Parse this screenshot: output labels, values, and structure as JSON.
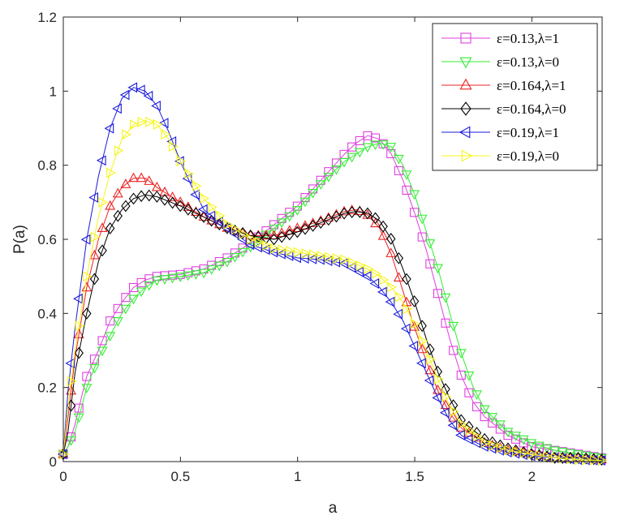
{
  "chart_data": {
    "type": "line",
    "xlabel": "a",
    "ylabel": "P(a)",
    "xlim": [
      0,
      2.3
    ],
    "ylim": [
      0,
      1.2
    ],
    "xticks": [
      0,
      0.5,
      1,
      1.5,
      2
    ],
    "yticks": [
      0,
      0.2,
      0.4,
      0.6,
      0.8,
      1,
      1.2
    ],
    "xtick_labels": [
      "0",
      "0.5",
      "1",
      "1.5",
      "2"
    ],
    "ytick_labels": [
      "0",
      "0.2",
      "0.4",
      "0.6",
      "0.8",
      "1",
      "1.2"
    ],
    "grid": false,
    "legend_position": "top-right",
    "marker_spacing": 0.0333,
    "series": [
      {
        "name": "ε=0.13,λ=1",
        "color": "#e040e0",
        "marker": "square",
        "points": [
          [
            0,
            0.02
          ],
          [
            0.02,
            0.04
          ],
          [
            0.05,
            0.1
          ],
          [
            0.08,
            0.18
          ],
          [
            0.1,
            0.23
          ],
          [
            0.15,
            0.3
          ],
          [
            0.2,
            0.38
          ],
          [
            0.25,
            0.43
          ],
          [
            0.3,
            0.47
          ],
          [
            0.35,
            0.49
          ],
          [
            0.4,
            0.5
          ],
          [
            0.5,
            0.505
          ],
          [
            0.6,
            0.52
          ],
          [
            0.7,
            0.55
          ],
          [
            0.8,
            0.59
          ],
          [
            0.9,
            0.64
          ],
          [
            1.0,
            0.69
          ],
          [
            1.1,
            0.76
          ],
          [
            1.2,
            0.83
          ],
          [
            1.25,
            0.86
          ],
          [
            1.3,
            0.88
          ],
          [
            1.35,
            0.87
          ],
          [
            1.4,
            0.83
          ],
          [
            1.45,
            0.76
          ],
          [
            1.5,
            0.67
          ],
          [
            1.55,
            0.57
          ],
          [
            1.6,
            0.45
          ],
          [
            1.65,
            0.33
          ],
          [
            1.7,
            0.23
          ],
          [
            1.75,
            0.16
          ],
          [
            1.8,
            0.12
          ],
          [
            1.9,
            0.07
          ],
          [
            2.0,
            0.04
          ],
          [
            2.1,
            0.03
          ],
          [
            2.2,
            0.02
          ],
          [
            2.3,
            0.01
          ]
        ]
      },
      {
        "name": "ε=0.13,λ=0",
        "color": "#33ee33",
        "marker": "triangle-down",
        "points": [
          [
            0,
            0.02
          ],
          [
            0.02,
            0.04
          ],
          [
            0.05,
            0.08
          ],
          [
            0.1,
            0.2
          ],
          [
            0.15,
            0.28
          ],
          [
            0.2,
            0.34
          ],
          [
            0.25,
            0.4
          ],
          [
            0.3,
            0.44
          ],
          [
            0.35,
            0.47
          ],
          [
            0.4,
            0.49
          ],
          [
            0.5,
            0.5
          ],
          [
            0.6,
            0.51
          ],
          [
            0.7,
            0.54
          ],
          [
            0.8,
            0.58
          ],
          [
            0.9,
            0.63
          ],
          [
            1.0,
            0.68
          ],
          [
            1.1,
            0.75
          ],
          [
            1.2,
            0.81
          ],
          [
            1.3,
            0.85
          ],
          [
            1.35,
            0.86
          ],
          [
            1.4,
            0.85
          ],
          [
            1.45,
            0.8
          ],
          [
            1.5,
            0.72
          ],
          [
            1.55,
            0.62
          ],
          [
            1.6,
            0.52
          ],
          [
            1.65,
            0.4
          ],
          [
            1.7,
            0.29
          ],
          [
            1.75,
            0.2
          ],
          [
            1.8,
            0.14
          ],
          [
            1.9,
            0.08
          ],
          [
            2.0,
            0.05
          ],
          [
            2.1,
            0.03
          ],
          [
            2.2,
            0.02
          ],
          [
            2.3,
            0.01
          ]
        ]
      },
      {
        "name": "ε=0.164,λ=1",
        "color": "#ee2222",
        "marker": "triangle-up",
        "points": [
          [
            0,
            0.02
          ],
          [
            0.02,
            0.12
          ],
          [
            0.05,
            0.28
          ],
          [
            0.1,
            0.47
          ],
          [
            0.15,
            0.6
          ],
          [
            0.2,
            0.69
          ],
          [
            0.25,
            0.74
          ],
          [
            0.3,
            0.765
          ],
          [
            0.35,
            0.765
          ],
          [
            0.4,
            0.74
          ],
          [
            0.5,
            0.7
          ],
          [
            0.6,
            0.66
          ],
          [
            0.7,
            0.63
          ],
          [
            0.8,
            0.61
          ],
          [
            0.9,
            0.61
          ],
          [
            1.0,
            0.63
          ],
          [
            1.1,
            0.65
          ],
          [
            1.2,
            0.675
          ],
          [
            1.25,
            0.68
          ],
          [
            1.3,
            0.665
          ],
          [
            1.35,
            0.63
          ],
          [
            1.4,
            0.56
          ],
          [
            1.45,
            0.46
          ],
          [
            1.5,
            0.36
          ],
          [
            1.55,
            0.27
          ],
          [
            1.6,
            0.19
          ],
          [
            1.65,
            0.13
          ],
          [
            1.7,
            0.09
          ],
          [
            1.8,
            0.05
          ],
          [
            1.9,
            0.03
          ],
          [
            2.0,
            0.02
          ],
          [
            2.1,
            0.01
          ],
          [
            2.2,
            0.01
          ],
          [
            2.3,
            0.005
          ]
        ]
      },
      {
        "name": "ε=0.164,λ=0",
        "color": "#000000",
        "marker": "diamond",
        "points": [
          [
            0,
            0.02
          ],
          [
            0.02,
            0.08
          ],
          [
            0.05,
            0.24
          ],
          [
            0.1,
            0.4
          ],
          [
            0.15,
            0.54
          ],
          [
            0.2,
            0.63
          ],
          [
            0.25,
            0.68
          ],
          [
            0.3,
            0.71
          ],
          [
            0.35,
            0.72
          ],
          [
            0.4,
            0.715
          ],
          [
            0.5,
            0.69
          ],
          [
            0.6,
            0.66
          ],
          [
            0.7,
            0.63
          ],
          [
            0.8,
            0.61
          ],
          [
            0.9,
            0.6
          ],
          [
            1.0,
            0.62
          ],
          [
            1.1,
            0.645
          ],
          [
            1.2,
            0.67
          ],
          [
            1.25,
            0.675
          ],
          [
            1.3,
            0.67
          ],
          [
            1.35,
            0.65
          ],
          [
            1.4,
            0.6
          ],
          [
            1.45,
            0.52
          ],
          [
            1.5,
            0.43
          ],
          [
            1.55,
            0.33
          ],
          [
            1.6,
            0.24
          ],
          [
            1.65,
            0.17
          ],
          [
            1.7,
            0.11
          ],
          [
            1.8,
            0.06
          ],
          [
            1.9,
            0.035
          ],
          [
            2.0,
            0.02
          ],
          [
            2.1,
            0.01
          ],
          [
            2.2,
            0.01
          ],
          [
            2.3,
            0.005
          ]
        ]
      },
      {
        "name": "ε=0.19,λ=1",
        "color": "#1a1adc",
        "marker": "triangle-left",
        "points": [
          [
            0,
            0.02
          ],
          [
            0.02,
            0.19
          ],
          [
            0.05,
            0.36
          ],
          [
            0.1,
            0.6
          ],
          [
            0.15,
            0.77
          ],
          [
            0.2,
            0.9
          ],
          [
            0.25,
            0.98
          ],
          [
            0.3,
            1.01
          ],
          [
            0.35,
            1.0
          ],
          [
            0.4,
            0.96
          ],
          [
            0.45,
            0.89
          ],
          [
            0.5,
            0.81
          ],
          [
            0.55,
            0.74
          ],
          [
            0.6,
            0.68
          ],
          [
            0.7,
            0.63
          ],
          [
            0.8,
            0.585
          ],
          [
            0.9,
            0.565
          ],
          [
            1.0,
            0.55
          ],
          [
            1.1,
            0.545
          ],
          [
            1.2,
            0.535
          ],
          [
            1.3,
            0.5
          ],
          [
            1.35,
            0.47
          ],
          [
            1.4,
            0.43
          ],
          [
            1.45,
            0.38
          ],
          [
            1.5,
            0.31
          ],
          [
            1.55,
            0.24
          ],
          [
            1.6,
            0.17
          ],
          [
            1.65,
            0.11
          ],
          [
            1.7,
            0.07
          ],
          [
            1.8,
            0.04
          ],
          [
            1.9,
            0.025
          ],
          [
            2.0,
            0.015
          ],
          [
            2.1,
            0.01
          ],
          [
            2.2,
            0.005
          ],
          [
            2.3,
            0.003
          ]
        ]
      },
      {
        "name": "ε=0.19,λ=0",
        "color": "#f5f51a",
        "marker": "triangle-right",
        "points": [
          [
            0,
            0.02
          ],
          [
            0.02,
            0.15
          ],
          [
            0.05,
            0.3
          ],
          [
            0.1,
            0.5
          ],
          [
            0.15,
            0.66
          ],
          [
            0.2,
            0.78
          ],
          [
            0.25,
            0.87
          ],
          [
            0.3,
            0.91
          ],
          [
            0.35,
            0.92
          ],
          [
            0.4,
            0.91
          ],
          [
            0.45,
            0.87
          ],
          [
            0.5,
            0.81
          ],
          [
            0.55,
            0.76
          ],
          [
            0.6,
            0.71
          ],
          [
            0.7,
            0.64
          ],
          [
            0.8,
            0.6
          ],
          [
            0.9,
            0.575
          ],
          [
            1.0,
            0.565
          ],
          [
            1.1,
            0.555
          ],
          [
            1.2,
            0.545
          ],
          [
            1.3,
            0.52
          ],
          [
            1.35,
            0.5
          ],
          [
            1.4,
            0.47
          ],
          [
            1.45,
            0.43
          ],
          [
            1.5,
            0.37
          ],
          [
            1.55,
            0.3
          ],
          [
            1.6,
            0.22
          ],
          [
            1.65,
            0.15
          ],
          [
            1.7,
            0.1
          ],
          [
            1.8,
            0.05
          ],
          [
            1.9,
            0.03
          ],
          [
            2.0,
            0.02
          ],
          [
            2.1,
            0.01
          ],
          [
            2.2,
            0.005
          ],
          [
            2.3,
            0.003
          ]
        ]
      }
    ]
  }
}
